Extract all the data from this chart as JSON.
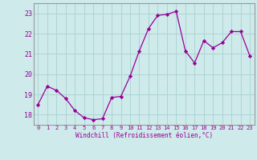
{
  "x": [
    0,
    1,
    2,
    3,
    4,
    5,
    6,
    7,
    8,
    9,
    10,
    11,
    12,
    13,
    14,
    15,
    16,
    17,
    18,
    19,
    20,
    21,
    22,
    23
  ],
  "y": [
    18.5,
    19.4,
    19.2,
    18.8,
    18.2,
    17.85,
    17.75,
    17.8,
    18.85,
    18.9,
    19.9,
    21.15,
    22.25,
    22.9,
    22.95,
    23.1,
    21.15,
    20.55,
    21.65,
    21.3,
    21.55,
    22.1,
    22.1,
    20.9
  ],
  "line_color": "#990099",
  "marker": "D",
  "marker_size": 2.2,
  "bg_color": "#ceeaea",
  "grid_color": "#aed4d4",
  "ylabel_ticks": [
    18,
    19,
    20,
    21,
    22,
    23
  ],
  "xtick_labels": [
    "0",
    "1",
    "2",
    "3",
    "4",
    "5",
    "6",
    "7",
    "8",
    "9",
    "10",
    "11",
    "12",
    "13",
    "14",
    "15",
    "16",
    "17",
    "18",
    "19",
    "20",
    "21",
    "22",
    "23"
  ],
  "xlabel": "Windchill (Refroidissement éolien,°C)",
  "ylim": [
    17.5,
    23.5
  ],
  "xlim": [
    -0.5,
    23.5
  ],
  "tick_color": "#990099",
  "label_color": "#990099",
  "font_family": "monospace",
  "xtick_fontsize": 5.0,
  "ytick_fontsize": 6.0,
  "xlabel_fontsize": 5.5
}
